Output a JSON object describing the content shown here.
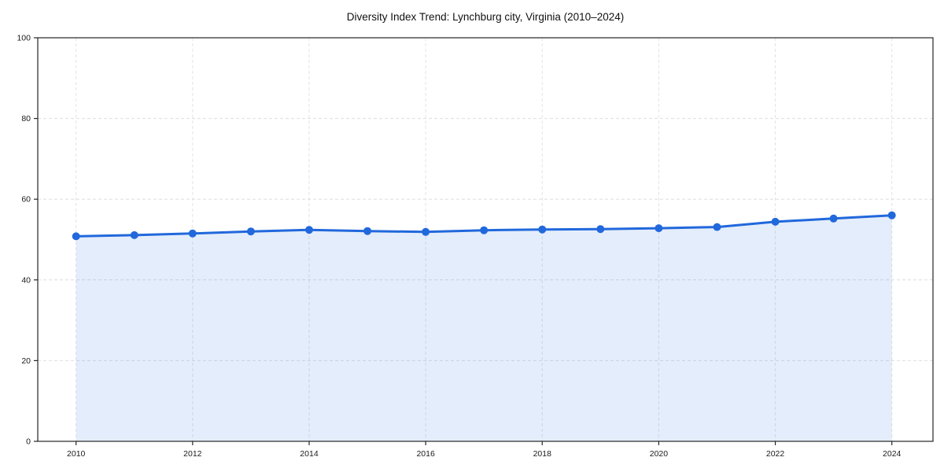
{
  "page": {
    "background": "#ffffff"
  },
  "chart_data": {
    "type": "area",
    "title": "Diversity Index Trend: Lynchburg city, Virginia (2010–2024)",
    "series_name": "Diversity Index",
    "x": [
      2010,
      2011,
      2012,
      2013,
      2014,
      2015,
      2016,
      2017,
      2018,
      2019,
      2020,
      2021,
      2022,
      2023,
      2024
    ],
    "values": [
      50.8,
      51.1,
      51.5,
      52.0,
      52.4,
      52.1,
      51.9,
      52.3,
      52.5,
      52.6,
      52.8,
      53.1,
      54.4,
      55.2,
      56.0
    ],
    "xlabel": "",
    "ylabel": "",
    "ylim": [
      0,
      100
    ],
    "yticks": [
      0,
      20,
      40,
      60,
      80,
      100
    ],
    "xticks": [
      2010,
      2012,
      2014,
      2016,
      2018,
      2020,
      2022,
      2024
    ],
    "grid": true,
    "grid_style": "dashed",
    "legend": "none",
    "marker": "circle",
    "colors": {
      "line": "#2168dc",
      "fill": "rgba(33,104,220,0.12)",
      "v_grid": "#e3e3e3",
      "h_grid": "#dedede",
      "spine": "#262626",
      "tick_text": "#1a1a1a",
      "title_text": "#111111"
    }
  }
}
